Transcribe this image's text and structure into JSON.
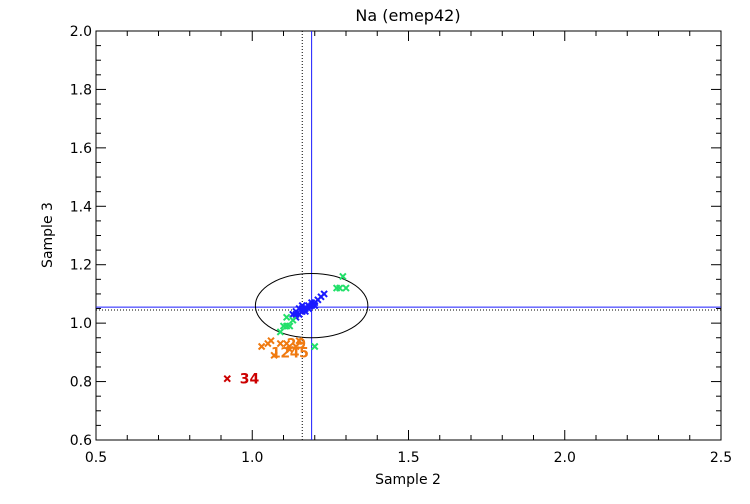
{
  "chart_data": {
    "type": "scatter",
    "title": "Na (emep42)",
    "xlabel": "Sample 2",
    "ylabel": "Sample 3",
    "xlim": [
      0.5,
      2.5
    ],
    "ylim": [
      0.6,
      2.0
    ],
    "xticks": [
      "0.5",
      "1.0",
      "1.5",
      "2.0",
      "2.5"
    ],
    "yticks": [
      "0.6",
      "0.8",
      "1.0",
      "1.2",
      "1.4",
      "1.6",
      "1.8",
      "2.0"
    ],
    "grid": false,
    "reference_lines": {
      "vertical_solid_x": 1.19,
      "horizontal_solid_y": 1.055,
      "vertical_dotted_x": 1.16,
      "horizontal_dotted_y": 1.045
    },
    "ellipse": {
      "cx": 1.19,
      "cy": 1.06,
      "rx": 0.18,
      "ry": 0.11
    },
    "colors": {
      "blue": "#1a1aff",
      "green": "#22e06a",
      "orange": "#f07a10",
      "red": "#cc0000",
      "reference": "#1a1aff",
      "axis": "#000000"
    },
    "series": [
      {
        "color": "blue",
        "points": [
          [
            1.13,
            1.03
          ],
          [
            1.14,
            1.02
          ],
          [
            1.14,
            1.04
          ],
          [
            1.15,
            1.03
          ],
          [
            1.15,
            1.05
          ],
          [
            1.16,
            1.04
          ],
          [
            1.16,
            1.06
          ],
          [
            1.17,
            1.05
          ],
          [
            1.17,
            1.04
          ],
          [
            1.18,
            1.06
          ],
          [
            1.18,
            1.05
          ],
          [
            1.19,
            1.07
          ],
          [
            1.2,
            1.06
          ],
          [
            1.21,
            1.08
          ],
          [
            1.22,
            1.09
          ],
          [
            1.23,
            1.1
          ],
          [
            1.14,
            1.03
          ],
          [
            1.16,
            1.05
          ],
          [
            1.19,
            1.06
          ],
          [
            1.2,
            1.07
          ]
        ]
      },
      {
        "color": "green",
        "points": [
          [
            1.09,
            0.97
          ],
          [
            1.1,
            0.99
          ],
          [
            1.11,
            1.02
          ],
          [
            1.11,
            0.99
          ],
          [
            1.12,
            0.99
          ],
          [
            1.13,
            1.01
          ],
          [
            1.2,
            0.92
          ],
          [
            1.27,
            1.12
          ],
          [
            1.28,
            1.12
          ],
          [
            1.29,
            1.16
          ],
          [
            1.3,
            1.12
          ]
        ]
      },
      {
        "color": "orange",
        "points": [
          [
            1.03,
            0.92
          ],
          [
            1.05,
            0.93
          ],
          [
            1.06,
            0.94
          ],
          [
            1.07,
            0.89
          ],
          [
            1.09,
            0.93
          ],
          [
            1.11,
            0.93
          ],
          [
            1.12,
            0.91
          ],
          [
            1.14,
            0.92
          ],
          [
            1.15,
            0.94
          ]
        ]
      },
      {
        "color": "red",
        "points": [
          [
            0.92,
            0.81
          ]
        ]
      }
    ],
    "point_labels": [
      {
        "text": "34",
        "x": 0.96,
        "y": 0.81,
        "color": "red"
      },
      {
        "text": "29",
        "x": 1.11,
        "y": 0.93,
        "color": "orange"
      },
      {
        "text": "1",
        "x": 1.06,
        "y": 0.9,
        "color": "orange"
      },
      {
        "text": "2",
        "x": 1.09,
        "y": 0.9,
        "color": "orange"
      },
      {
        "text": "4",
        "x": 1.12,
        "y": 0.9,
        "color": "orange"
      },
      {
        "text": "5",
        "x": 1.15,
        "y": 0.9,
        "color": "orange"
      }
    ]
  }
}
